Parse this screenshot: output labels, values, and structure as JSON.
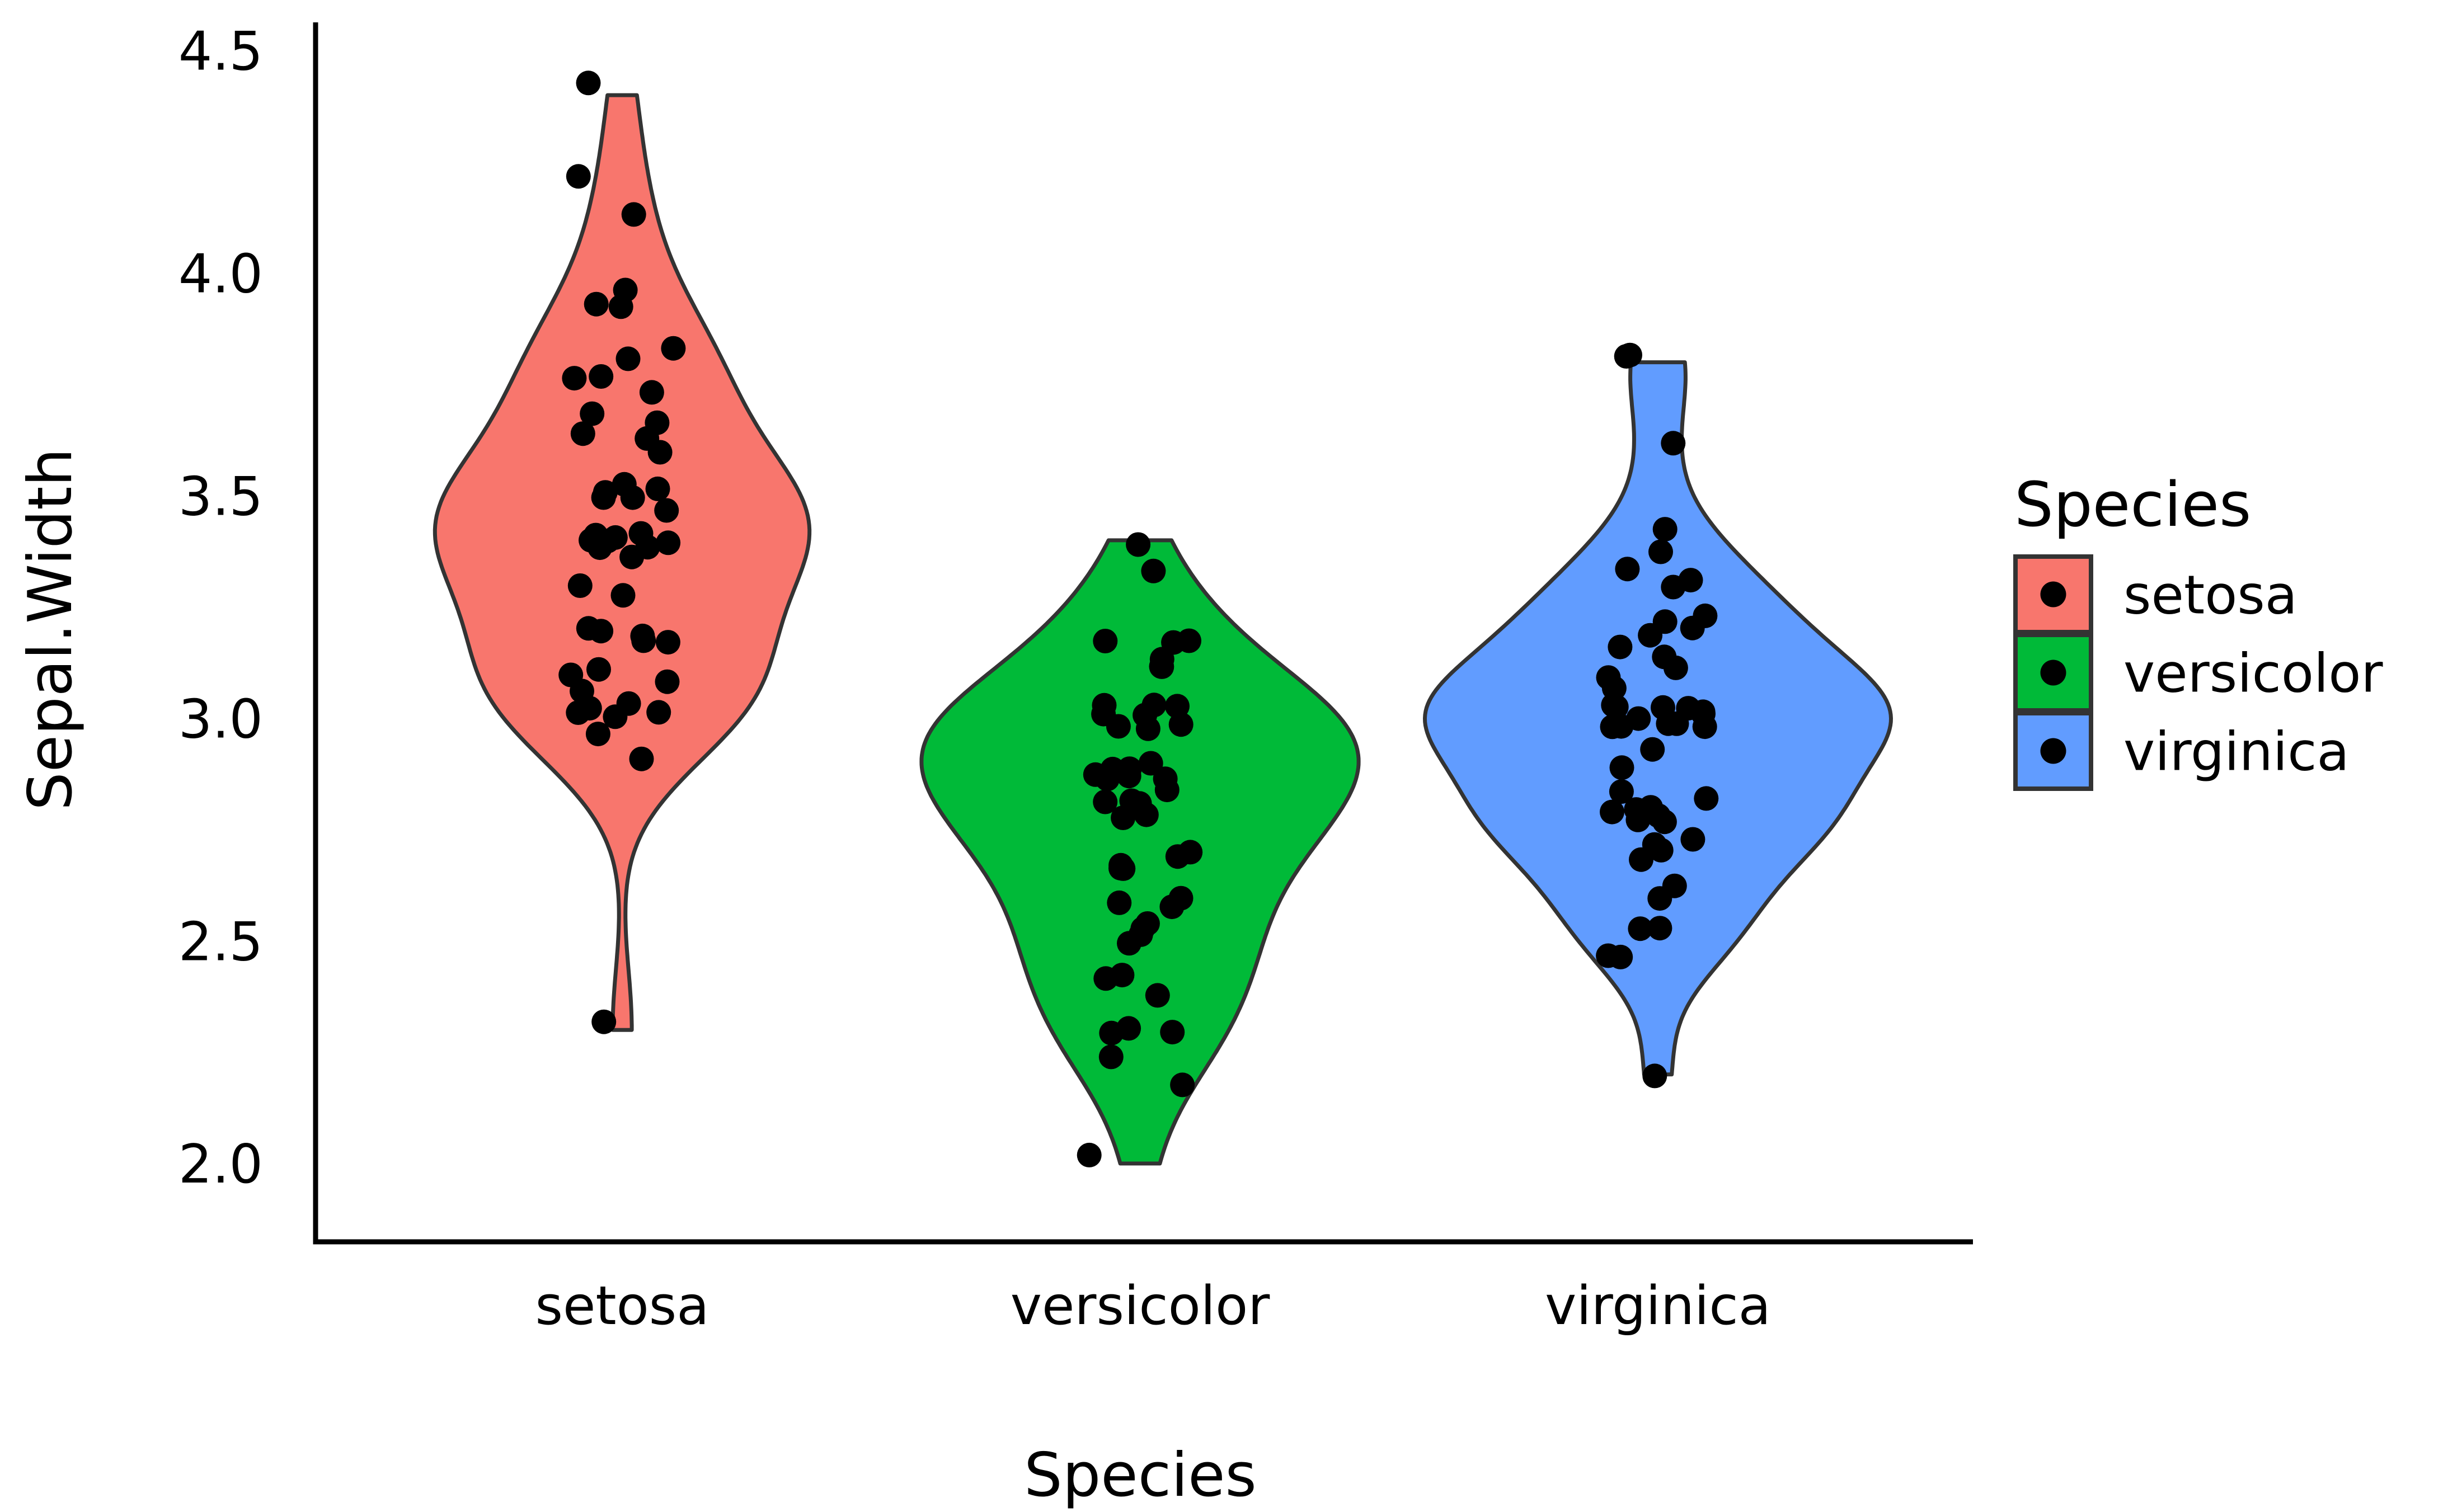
{
  "figure": {
    "background": "#FFFFFF",
    "text_color": "#000000"
  },
  "axes": {
    "y": {
      "label": "Sepal.Width",
      "ticks": [
        "2.0",
        "2.5",
        "3.0",
        "3.5",
        "4.0",
        "4.5"
      ],
      "tick_values": [
        2.0,
        2.5,
        3.0,
        3.5,
        4.0,
        4.5
      ]
    },
    "x": {
      "label": "Species",
      "categories": [
        "setosa",
        "versicolor",
        "virginica"
      ]
    }
  },
  "legend": {
    "title": "Species",
    "position": "right",
    "items": [
      {
        "label": "setosa",
        "color": "#F8766D",
        "marker": "black-point-icon"
      },
      {
        "label": "versicolor",
        "color": "#00BA38",
        "marker": "black-point-icon"
      },
      {
        "label": "virginica",
        "color": "#619CFF",
        "marker": "black-point-icon"
      }
    ]
  },
  "style": {
    "violin_outline_color": "#333333",
    "axis_line_color": "#000000",
    "point_color": "#000000"
  },
  "chart_data": {
    "type": "violin",
    "title": "",
    "xlabel": "Species",
    "ylabel": "Sepal.Width",
    "categories": [
      "setosa",
      "versicolor",
      "virginica"
    ],
    "yticks": [
      2.0,
      2.5,
      3.0,
      3.5,
      4.0,
      4.5
    ],
    "ylim": [
      1.82,
      4.57
    ],
    "grid": false,
    "legend_position": "right",
    "overlays": [
      "jittered-points"
    ],
    "violin_options": {
      "trim": true,
      "scale": "area",
      "bandwidth": "nrd0",
      "width": 0.9
    },
    "series": [
      {
        "name": "setosa",
        "color": "#F8766D",
        "values": [
          3.5,
          3.0,
          3.2,
          3.1,
          3.6,
          3.9,
          3.4,
          3.4,
          2.9,
          3.1,
          3.7,
          3.4,
          3.0,
          3.0,
          4.0,
          4.4,
          3.9,
          3.5,
          3.8,
          3.8,
          3.4,
          3.7,
          3.6,
          3.3,
          3.4,
          3.0,
          3.4,
          3.5,
          3.4,
          3.2,
          3.1,
          3.4,
          4.1,
          4.2,
          3.1,
          3.2,
          3.5,
          3.6,
          3.0,
          3.4,
          3.5,
          2.3,
          3.2,
          3.5,
          3.8,
          3.0,
          3.8,
          3.2,
          3.7,
          3.3
        ]
      },
      {
        "name": "versicolor",
        "color": "#00BA38",
        "values": [
          3.2,
          3.2,
          3.1,
          2.3,
          2.8,
          2.8,
          3.3,
          2.4,
          2.9,
          2.7,
          2.0,
          3.0,
          2.2,
          2.9,
          2.9,
          3.1,
          3.0,
          2.7,
          2.2,
          2.5,
          3.2,
          2.8,
          2.5,
          2.8,
          2.9,
          3.0,
          2.8,
          3.0,
          2.9,
          2.6,
          2.4,
          2.4,
          2.7,
          2.7,
          3.0,
          3.4,
          3.1,
          2.3,
          3.0,
          2.5,
          2.6,
          3.0,
          2.6,
          2.3,
          2.7,
          3.0,
          2.9,
          2.9,
          2.5,
          2.8
        ]
      },
      {
        "name": "virginica",
        "color": "#619CFF",
        "values": [
          3.3,
          2.7,
          3.0,
          2.9,
          3.0,
          3.0,
          2.5,
          2.9,
          2.5,
          3.6,
          3.2,
          2.7,
          3.0,
          2.5,
          2.8,
          3.2,
          3.0,
          3.8,
          2.6,
          2.2,
          3.2,
          2.8,
          2.8,
          2.7,
          3.3,
          3.2,
          2.8,
          3.0,
          2.8,
          3.0,
          2.8,
          3.8,
          2.8,
          2.8,
          2.6,
          3.0,
          3.4,
          3.1,
          3.0,
          3.1,
          3.1,
          3.1,
          2.7,
          3.2,
          3.3,
          3.0,
          2.5,
          3.0,
          3.4,
          3.0
        ]
      }
    ]
  }
}
